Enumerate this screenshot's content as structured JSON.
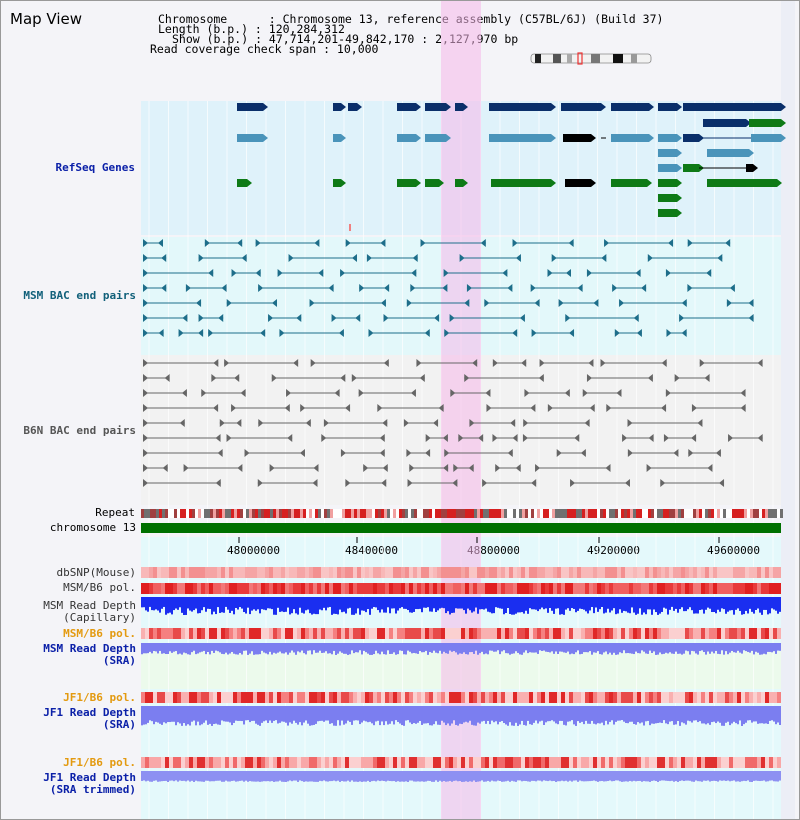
{
  "title": "Map View",
  "info": {
    "chromosome": "Chromosome      : Chromosome 13, reference assembly (C57BL/6J) (Build 37)",
    "length": "Length (b.p.) : 120,284,312",
    "show": "Show (b.p.) : 47,714,201-49,842,170 : 2,127,970 bp",
    "coverage": "Read coverage check span : 10,000"
  },
  "tracks": {
    "refseq": "RefSeq Genes",
    "msm_bac": "MSM BAC end pairs",
    "b6n_bac": "B6N BAC end pairs",
    "repeat": "Repeat",
    "chromosome": "chromosome 13",
    "dbsnp": "dbSNP(Mouse)",
    "msm_pol": "MSM/B6 pol.",
    "msm_depth_cap": "MSM Read Depth\n(Capillary)",
    "msm_pol2": "MSM/B6 pol.",
    "msm_depth_sra": "MSM Read Depth\n(SRA)",
    "jf1_pol": "JF1/B6 pol.",
    "jf1_depth_sra": "JF1 Read Depth\n(SRA)",
    "jf1_pol2": "JF1/B6 pol.",
    "jf1_depth_trim": "JF1 Read Depth\n(SRA trimmed)"
  },
  "axis": {
    "ticks": [
      "48000000",
      "48400000",
      "48800000",
      "49200000",
      "49600000"
    ]
  },
  "colors": {
    "refseq_bg": "#dff2fa",
    "highlight": "#f8d2f0",
    "gene_dark": "#0a2f6a",
    "gene_mid": "#4a94ba",
    "gene_green": "#0e7a16",
    "chromosome": "#007000"
  }
}
